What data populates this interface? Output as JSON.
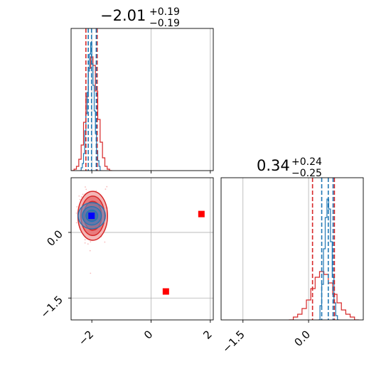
{
  "chart_data": {
    "type": "corner",
    "parameters": [
      "x",
      "y"
    ],
    "colors": {
      "red": "#d62728",
      "blue": "#1f77b4",
      "red_marker": "#ff0000",
      "blue_marker": "#0000ff",
      "grid": "#b0b0b0"
    },
    "grid": true,
    "panels": [
      {
        "id": "hist_x",
        "type": "histogram",
        "title": {
          "value": "−2.01",
          "upper": "+0.19",
          "lower": "−0.19"
        },
        "xlim": [
          -2.7,
          2.1
        ],
        "xticks": [
          -2,
          0,
          2
        ],
        "x_tick_labels_shown": false,
        "red_quantiles": [
          -2.2,
          -1.82
        ],
        "blue_quantiles": [
          -2.12,
          -2.01,
          -1.85
        ],
        "series": [
          {
            "name": "",
            "color": "#1f77b4",
            "bin_centers": [
              -2.38,
              -2.34,
              -2.3,
              -2.26,
              -2.22,
              -2.18,
              -2.14,
              -2.1,
              -2.06,
              -2.02,
              -1.98,
              -1.94,
              -1.9,
              -1.86,
              -1.82,
              -1.78,
              -1.74,
              -1.7
            ],
            "counts": [
              0.0,
              0.02,
              0.05,
              0.12,
              0.28,
              0.4,
              0.55,
              0.7,
              0.82,
              0.9,
              0.75,
              0.6,
              0.42,
              0.26,
              0.14,
              0.07,
              0.03,
              0.0
            ]
          },
          {
            "name": "",
            "color": "#d62728",
            "bin_centers": [
              -2.64,
              -2.56,
              -2.48,
              -2.4,
              -2.32,
              -2.24,
              -2.16,
              -2.08,
              -2.0,
              -1.92,
              -1.84,
              -1.76,
              -1.68,
              -1.6,
              -1.52,
              -1.44,
              -1.36
            ],
            "counts": [
              0.0,
              0.01,
              0.03,
              0.08,
              0.18,
              0.34,
              0.52,
              0.72,
              0.8,
              0.74,
              0.56,
              0.36,
              0.2,
              0.09,
              0.03,
              0.01,
              0.0
            ]
          }
        ]
      },
      {
        "id": "scatter_xy",
        "type": "2d",
        "xlim": [
          -2.7,
          2.1
        ],
        "ylim": [
          -2.0,
          1.25
        ],
        "xticks": [
          -2,
          0,
          2
        ],
        "yticks": [
          0.0,
          -1.5
        ],
        "x_tick_labels": [
          "−2",
          "0",
          "2"
        ],
        "y_tick_labels": [
          "0.0",
          "−1.5"
        ],
        "gridlines_x": [
          0.0,
          2.0
        ],
        "gridlines_y": [
          0.0,
          -1.5
        ],
        "red_contour_center": [
          -1.97,
          0.38
        ],
        "red_contour_radii_x": [
          0.5,
          0.4,
          0.3
        ],
        "red_contour_radii_y": [
          0.56,
          0.45,
          0.33
        ],
        "blue_contour_center": [
          -2.0,
          0.38
        ],
        "blue_contour_radii_x": [
          0.46,
          0.32,
          0.2
        ],
        "blue_contour_radii_y": [
          0.3,
          0.21,
          0.13
        ],
        "red_square_markers": [
          [
            0.5,
            -1.35
          ],
          [
            1.7,
            0.42
          ]
        ],
        "blue_square_marker": [
          -2.01,
          0.38
        ]
      },
      {
        "id": "hist_y",
        "type": "histogram",
        "title": {
          "value": "0.34",
          "upper": "+0.24",
          "lower": "−0.25"
        },
        "xlim": [
          -2.0,
          1.25
        ],
        "xticks": [
          -1.5,
          0.0
        ],
        "x_tick_labels": [
          "−1.5",
          "0.0"
        ],
        "red_quantiles": [
          0.09,
          0.59
        ],
        "blue_quantiles": [
          0.3,
          0.45,
          0.56
        ],
        "series": [
          {
            "name": "",
            "color": "#1f77b4",
            "bin_centers": [
              0.24,
              0.28,
              0.32,
              0.36,
              0.4,
              0.44,
              0.48,
              0.52,
              0.56,
              0.6,
              0.64,
              0.68
            ],
            "counts": [
              0.0,
              0.1,
              0.25,
              0.5,
              0.72,
              0.85,
              0.78,
              0.55,
              0.3,
              0.12,
              0.03,
              0.0
            ]
          },
          {
            "name": "",
            "color": "#d62728",
            "bin_centers": [
              -0.4,
              -0.3,
              -0.2,
              -0.1,
              0.0,
              0.1,
              0.2,
              0.3,
              0.4,
              0.5,
              0.6,
              0.7,
              0.8,
              0.9,
              1.0,
              1.1
            ],
            "counts": [
              0.0,
              0.02,
              0.04,
              0.08,
              0.14,
              0.22,
              0.3,
              0.34,
              0.32,
              0.26,
              0.18,
              0.12,
              0.07,
              0.04,
              0.02,
              0.0
            ]
          }
        ]
      }
    ]
  }
}
